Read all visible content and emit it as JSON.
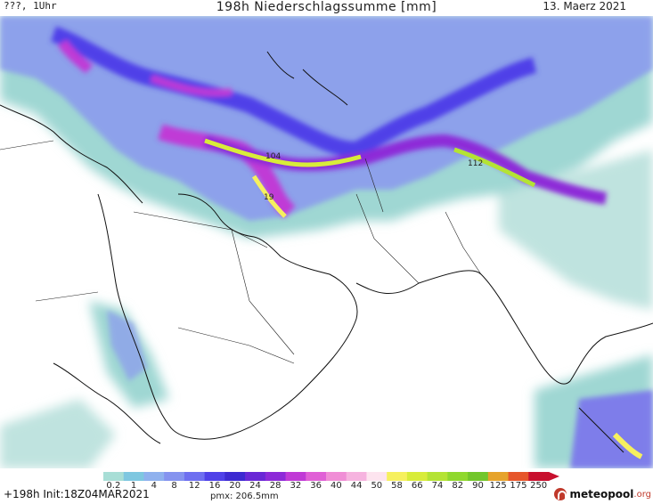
{
  "header": {
    "left": "???, 1Uhr",
    "title": "198h Niederschlagssumme [mm]",
    "date": "13. Maerz 2021"
  },
  "legend": {
    "values": [
      "0.2",
      "1",
      "4",
      "8",
      "12",
      "16",
      "20",
      "24",
      "28",
      "32",
      "36",
      "40",
      "44",
      "50",
      "58",
      "66",
      "74",
      "82",
      "90",
      "125",
      "175",
      "250"
    ],
    "colors": [
      "#a8ded6",
      "#7ec7e0",
      "#8fb1ee",
      "#8593ef",
      "#6e6ff0",
      "#4f41e8",
      "#3d2ad1",
      "#6928d6",
      "#8d2ad8",
      "#c03ad6",
      "#e060d6",
      "#f08ed6",
      "#f6b3df",
      "#fde4ef",
      "#f6f05e",
      "#d8ec3a",
      "#b4e334",
      "#8fd82e",
      "#72c62b",
      "#e6a32b",
      "#e6562b",
      "#c8102e"
    ]
  },
  "footer": {
    "run": "+198h Init:18Z04MAR2021",
    "pmx": "pmx: 206.5mm"
  },
  "map": {
    "labels": [
      {
        "text": "104"
      },
      {
        "text": "112"
      },
      {
        "text": "19"
      }
    ]
  },
  "logo": {
    "name": "meteopool",
    "tld": ".org"
  }
}
